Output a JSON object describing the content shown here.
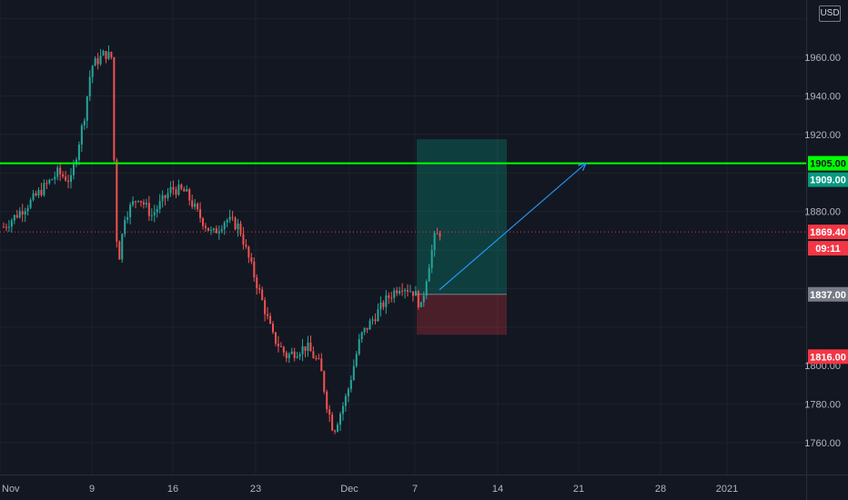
{
  "currency": "USD",
  "chart_data": {
    "type": "candlestick",
    "x_tick_labels": [
      "Nov",
      "9",
      "16",
      "23",
      "Dec",
      "7",
      "14",
      "21",
      "28",
      "2021"
    ],
    "y_tick_labels": [
      1960,
      1940,
      1920,
      1880,
      1800,
      1780,
      1760
    ],
    "ylim": [
      1744,
      1990
    ],
    "grid": true,
    "close_path": [
      [
        0,
        1872
      ],
      [
        4,
        1885
      ],
      [
        8,
        1900
      ],
      [
        10,
        1896
      ],
      [
        12,
        1930
      ],
      [
        13,
        1955
      ],
      [
        15,
        1962
      ],
      [
        16,
        1960
      ],
      [
        16.6,
        1880
      ],
      [
        17,
        1852
      ],
      [
        18,
        1878
      ],
      [
        20,
        1888
      ],
      [
        22,
        1878
      ],
      [
        25,
        1892
      ],
      [
        27,
        1890
      ],
      [
        29,
        1878
      ],
      [
        31,
        1868
      ],
      [
        33,
        1876
      ],
      [
        35,
        1872
      ],
      [
        36,
        1860
      ],
      [
        38,
        1838
      ],
      [
        40,
        1815
      ],
      [
        42,
        1805
      ],
      [
        45,
        1810
      ],
      [
        47,
        1800
      ],
      [
        48,
        1780
      ],
      [
        49,
        1766
      ],
      [
        51,
        1785
      ],
      [
        53,
        1815
      ],
      [
        55,
        1825
      ],
      [
        57,
        1835
      ],
      [
        59,
        1842
      ],
      [
        61,
        1838
      ],
      [
        62,
        1830
      ],
      [
        63,
        1850
      ],
      [
        64,
        1866
      ],
      [
        65,
        1870
      ]
    ],
    "horizontal_level": {
      "price": 1905.0,
      "label": "1905.00",
      "color": "#00ff00"
    },
    "last_price": {
      "price": 1869.4,
      "label": "1869.40",
      "countdown": "09:11",
      "color": "#f23645"
    },
    "position": {
      "type": "long",
      "target": {
        "price": 1909.0,
        "label": "1909.00",
        "color": "#089981"
      },
      "entry": {
        "price": 1837.0,
        "label": "1837.00",
        "color": "#787b86"
      },
      "stop": {
        "price": 1816.0,
        "label": "1816.00",
        "color": "#f23645"
      }
    },
    "arrow_annotation": {
      "from": [
        1837,
        1837
      ],
      "to": [
        1905,
        1905
      ],
      "color": "#2196f3"
    }
  }
}
